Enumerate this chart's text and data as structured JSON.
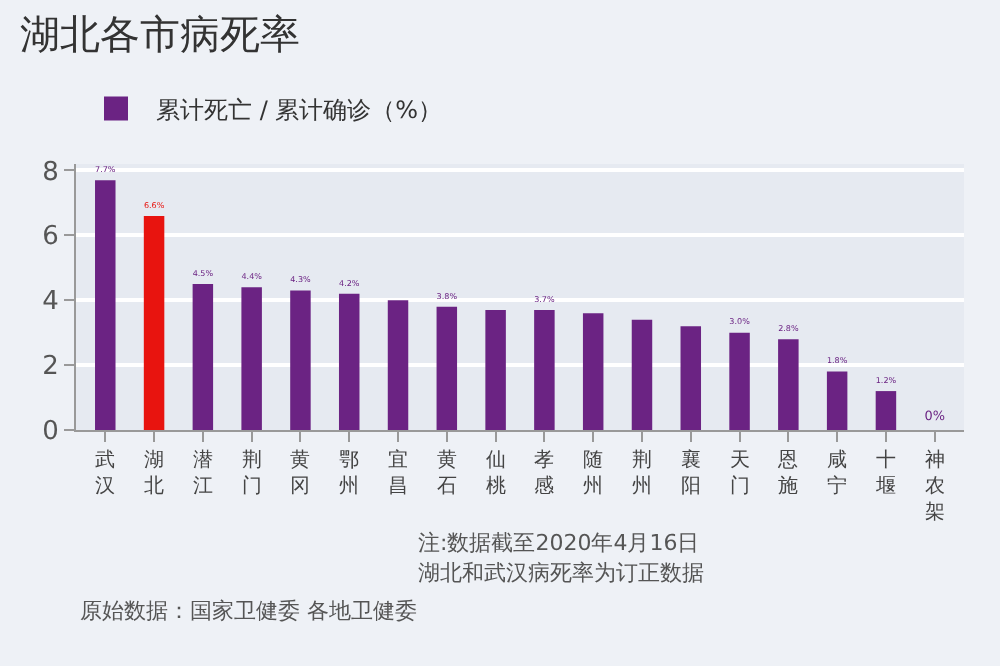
{
  "chart_data": {
    "type": "bar",
    "title": "湖北各市病死率",
    "categories": [
      "武汉",
      "湖北",
      "潜江",
      "荆门",
      "黄冈",
      "鄂州",
      "宜昌",
      "黄石",
      "仙桃",
      "孝感",
      "随州",
      "荆州",
      "襄阳",
      "天门",
      "恩施",
      "咸宁",
      "十堰",
      "神农架"
    ],
    "series": [
      {
        "name": "累计死亡 / 累计确诊（%）",
        "colors": [
          "#6b2383",
          "#e8140f",
          "#6b2383",
          "#6b2383",
          "#6b2383",
          "#6b2383",
          "#6b2383",
          "#6b2383",
          "#6b2383",
          "#6b2383",
          "#6b2383",
          "#6b2383",
          "#6b2383",
          "#6b2383",
          "#6b2383",
          "#6b2383",
          "#6b2383",
          "#6b2383"
        ],
        "values": [
          7.7,
          6.6,
          4.5,
          4.4,
          4.3,
          4.2,
          4.0,
          3.8,
          3.7,
          3.7,
          3.6,
          3.4,
          3.2,
          3.0,
          2.8,
          1.8,
          1.2,
          0
        ],
        "value_labels": [
          "7.7%",
          "6.6%",
          "4.5%",
          "4.4%",
          "4.3%",
          "4.2%",
          null,
          "3.8%",
          null,
          "3.7%",
          null,
          null,
          null,
          "3.0%",
          "2.8%",
          "1.8%",
          "1.2%",
          "0%"
        ]
      }
    ],
    "ylim": [
      0,
      8.2
    ],
    "yticks": [
      0,
      2,
      4,
      6,
      8
    ],
    "grid": "y",
    "legend": "top left",
    "annotations": [
      "注:数据截至2020年4月16日",
      "湖北和武汉病死率为订正数据",
      "原始数据：国家卫健委 各地卫健委"
    ]
  }
}
